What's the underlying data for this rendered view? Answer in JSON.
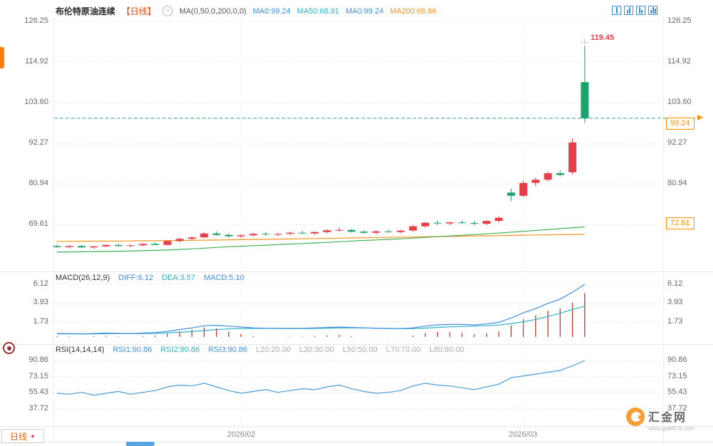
{
  "header": {
    "symbol": "布伦特原油连续",
    "period_tag": "【日线】",
    "ma_param_label": "MA(0,50,0,200,0,0)",
    "ma0_a": "MA0:99.24",
    "ma50": "MA50:68.91",
    "ma0_b": "MA0:99.24",
    "ma200": "MA200:66.86"
  },
  "macd_legend": {
    "title": "MACD(26,12,9)",
    "diff": "DIFF:6.12",
    "dea": "DEA:3.57",
    "macd": "MACD:5.10"
  },
  "rsi_legend": {
    "title": "RSI(14,14,14)",
    "rsi1": "RSI1:90.86",
    "rsi2": "RSI2:90.86",
    "rsi3": "RSI3:90.86",
    "l20": "L20:20.00",
    "l30": "L30:30.00",
    "l50": "L50:50.00",
    "l70": "L70:70.00",
    "l80": "L80:80.00"
  },
  "axes": {
    "time_ticks": [
      "2026/02",
      "2026/03"
    ],
    "price_marker_current": "99.24",
    "price_marker_secondary": "72.61",
    "high_annotation": "119.45"
  },
  "footer": {
    "period_tab": "日线"
  },
  "watermark": {
    "name": "汇金网",
    "url": "www.gold678.com"
  },
  "colors": {
    "up": "#e5404a",
    "down": "#1ca26a",
    "ma50_line": "#3fae53",
    "ma200_line": "#f0941e",
    "diff_line": "#3e8ede",
    "dea_line": "#2ab0c5",
    "hist_bar": "#c0392b",
    "rsi_line": "#4a9ad4",
    "dashed_price": "#2b9e93",
    "accent": "#ff9000"
  },
  "chart_data": [
    {
      "type": "candlestick",
      "title": "布伦特原油连续 日线",
      "y_ticks": [
        126.25,
        114.92,
        103.6,
        92.27,
        80.94,
        69.61
      ],
      "current_price": 99.24,
      "high": 119.45,
      "secondary_marker": 72.61,
      "x_month_ticks": [
        {
          "label": "2026/02",
          "index": 15
        },
        {
          "label": "2026/03",
          "index": 38
        }
      ],
      "candles": [
        [
          63.6,
          64.0,
          63.1,
          63.3
        ],
        [
          63.3,
          63.8,
          62.9,
          63.6
        ],
        [
          63.6,
          63.9,
          63.0,
          63.2
        ],
        [
          63.2,
          63.7,
          62.8,
          63.5
        ],
        [
          63.5,
          64.1,
          63.2,
          63.9
        ],
        [
          63.9,
          64.3,
          63.4,
          63.6
        ],
        [
          63.6,
          64.0,
          63.2,
          63.8
        ],
        [
          63.8,
          64.4,
          63.5,
          64.2
        ],
        [
          64.2,
          64.6,
          63.7,
          63.9
        ],
        [
          63.9,
          65.3,
          63.8,
          65.0
        ],
        [
          65.0,
          65.9,
          64.6,
          65.6
        ],
        [
          65.6,
          66.3,
          65.2,
          66.0
        ],
        [
          66.0,
          67.4,
          65.8,
          67.1
        ],
        [
          67.1,
          67.7,
          66.4,
          66.7
        ],
        [
          66.7,
          67.1,
          66.0,
          66.3
        ],
        [
          66.3,
          66.9,
          65.9,
          66.6
        ],
        [
          66.6,
          67.3,
          66.2,
          67.0
        ],
        [
          67.0,
          67.5,
          66.5,
          66.8
        ],
        [
          66.8,
          67.2,
          66.3,
          67.0
        ],
        [
          67.0,
          67.6,
          66.6,
          67.3
        ],
        [
          67.3,
          67.9,
          66.9,
          67.1
        ],
        [
          67.1,
          67.7,
          66.7,
          67.5
        ],
        [
          67.5,
          68.3,
          67.1,
          68.0
        ],
        [
          68.0,
          68.7,
          67.6,
          68.1
        ],
        [
          68.1,
          68.4,
          67.3,
          67.6
        ],
        [
          67.6,
          68.0,
          67.0,
          67.3
        ],
        [
          67.3,
          67.9,
          66.9,
          67.7
        ],
        [
          67.7,
          68.2,
          67.2,
          67.5
        ],
        [
          67.5,
          68.1,
          67.1,
          67.9
        ],
        [
          67.9,
          69.4,
          67.6,
          69.1
        ],
        [
          69.1,
          70.4,
          68.7,
          70.1
        ],
        [
          70.1,
          70.7,
          69.5,
          69.9
        ],
        [
          69.9,
          70.5,
          69.4,
          70.2
        ],
        [
          70.2,
          70.8,
          69.7,
          70.0
        ],
        [
          70.0,
          70.6,
          69.5,
          69.8
        ],
        [
          69.8,
          70.9,
          69.4,
          70.6
        ],
        [
          70.6,
          71.9,
          70.1,
          71.5
        ],
        [
          78.5,
          79.6,
          76.1,
          77.6
        ],
        [
          77.6,
          81.9,
          77.3,
          81.2
        ],
        [
          81.2,
          82.7,
          80.3,
          82.1
        ],
        [
          82.1,
          84.4,
          81.6,
          83.9
        ],
        [
          83.9,
          84.7,
          83.0,
          83.4
        ],
        [
          84.2,
          93.6,
          83.6,
          92.5
        ],
        [
          109.3,
          119.45,
          97.9,
          99.24
        ]
      ],
      "ma50": [
        61.9,
        61.95,
        62.0,
        62.05,
        62.1,
        62.15,
        62.2,
        62.3,
        62.4,
        62.5,
        62.65,
        62.8,
        63.0,
        63.2,
        63.4,
        63.55,
        63.7,
        63.85,
        64.0,
        64.15,
        64.3,
        64.45,
        64.6,
        64.8,
        65.0,
        65.15,
        65.3,
        65.45,
        65.6,
        65.8,
        66.0,
        66.2,
        66.4,
        66.6,
        66.8,
        67.0,
        67.2,
        67.45,
        67.7,
        67.95,
        68.2,
        68.45,
        68.7,
        68.91
      ],
      "ma200": [
        64.9,
        64.92,
        64.94,
        64.96,
        64.98,
        65.0,
        65.02,
        65.05,
        65.08,
        65.11,
        65.15,
        65.19,
        65.23,
        65.28,
        65.33,
        65.38,
        65.43,
        65.48,
        65.53,
        65.58,
        65.63,
        65.68,
        65.73,
        65.79,
        65.85,
        65.9,
        65.95,
        66.0,
        66.05,
        66.1,
        66.16,
        66.22,
        66.28,
        66.34,
        66.4,
        66.45,
        66.5,
        66.56,
        66.62,
        66.68,
        66.73,
        66.78,
        66.82,
        66.86
      ]
    },
    {
      "type": "line+bar",
      "name": "MACD",
      "y_ticks": [
        6.12,
        3.93,
        1.73
      ],
      "diff": [
        0.4,
        0.38,
        0.36,
        0.4,
        0.45,
        0.42,
        0.4,
        0.45,
        0.5,
        0.65,
        0.85,
        1.05,
        1.3,
        1.35,
        1.25,
        1.15,
        1.05,
        1.0,
        1.0,
        1.0,
        1.0,
        1.05,
        1.1,
        1.15,
        1.1,
        1.05,
        1.02,
        0.99,
        0.97,
        1.05,
        1.25,
        1.4,
        1.45,
        1.45,
        1.4,
        1.5,
        1.7,
        2.2,
        2.8,
        3.3,
        3.9,
        4.4,
        5.2,
        6.12
      ],
      "dea": [
        0.35,
        0.35,
        0.35,
        0.36,
        0.38,
        0.39,
        0.39,
        0.4,
        0.42,
        0.46,
        0.53,
        0.62,
        0.74,
        0.85,
        0.93,
        0.97,
        0.99,
        1.0,
        0.99,
        0.98,
        0.98,
        0.99,
        1.01,
        1.04,
        1.05,
        1.04,
        1.01,
        0.98,
        0.96,
        0.98,
        1.03,
        1.1,
        1.17,
        1.22,
        1.26,
        1.3,
        1.38,
        1.53,
        1.76,
        2.04,
        2.38,
        2.75,
        3.2,
        3.57
      ],
      "hist": [
        0.1,
        0.06,
        0.02,
        0.08,
        0.14,
        0.06,
        0.02,
        0.1,
        0.16,
        0.38,
        0.64,
        0.86,
        1.12,
        1.0,
        0.64,
        0.36,
        0.12,
        0.0,
        0.02,
        0.04,
        0.04,
        0.12,
        0.18,
        0.22,
        0.1,
        0.02,
        0.02,
        0.02,
        0.02,
        0.14,
        0.44,
        0.6,
        0.56,
        0.46,
        0.28,
        0.4,
        0.64,
        1.34,
        2.08,
        2.52,
        3.04,
        3.3,
        4.0,
        5.1
      ]
    },
    {
      "type": "line",
      "name": "RSI",
      "y_ticks": [
        90.86,
        73.15,
        55.43,
        37.72
      ],
      "values": [
        55,
        54,
        56,
        53,
        55,
        57,
        54,
        56,
        58,
        62,
        64,
        63,
        66,
        62,
        58,
        55,
        57,
        59,
        56,
        58,
        60,
        59,
        62,
        64,
        60,
        57,
        55,
        56,
        58,
        63,
        66,
        64,
        63,
        61,
        59,
        62,
        65,
        72,
        74,
        76,
        78,
        80,
        85,
        90.86
      ]
    }
  ]
}
